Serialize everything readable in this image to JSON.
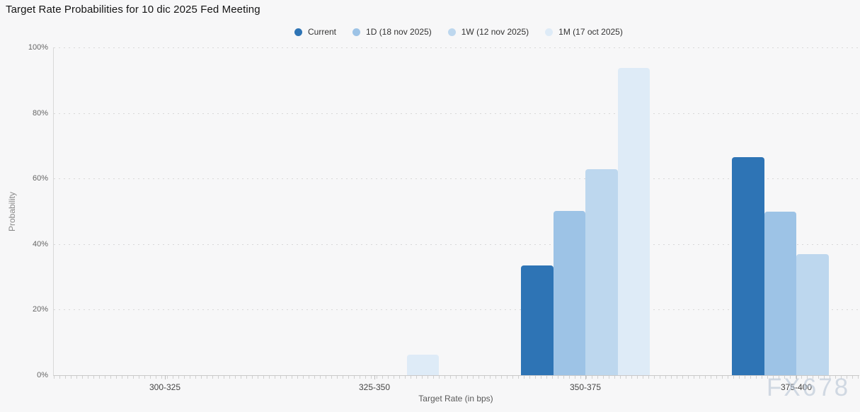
{
  "page": {
    "background": "#f7f7f8"
  },
  "chart_data": {
    "type": "bar",
    "title": "Target Rate Probabilities for 10 dic 2025 Fed Meeting",
    "xlabel": "Target Rate (in bps)",
    "ylabel": "Probability",
    "ylim": [
      0,
      100
    ],
    "y_tick_labels": [
      "0%",
      "20%",
      "40%",
      "60%",
      "80%",
      "100%"
    ],
    "categories": [
      "300-325",
      "325-350",
      "350-375",
      "375-400"
    ],
    "series": [
      {
        "name": "Current",
        "color": "#2e74b5",
        "values": [
          0,
          0,
          33.4,
          66.6
        ]
      },
      {
        "name": "1D (18 nov 2025)",
        "color": "#9dc3e6",
        "values": [
          0,
          0,
          50.2,
          49.8
        ]
      },
      {
        "name": "1W (12 nov 2025)",
        "color": "#bdd7ee",
        "values": [
          0,
          0,
          62.8,
          37.0
        ]
      },
      {
        "name": "1M (17 oct 2025)",
        "color": "#deebf7",
        "values": [
          0,
          6.2,
          93.8,
          0
        ]
      }
    ],
    "legend_position": "top",
    "grid": "horizontal dotted gridlines at 20% intervals",
    "watermark": "FX678"
  }
}
